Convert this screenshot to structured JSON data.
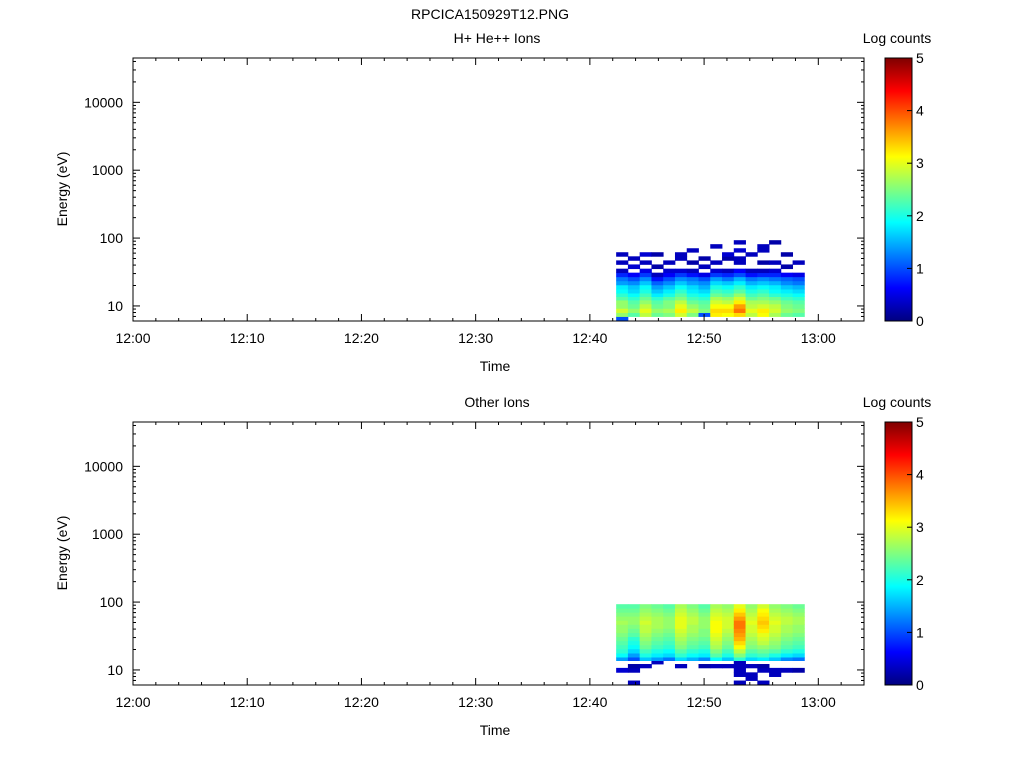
{
  "figure_title": "RPCICA150929T12.PNG",
  "chart_data": [
    {
      "type": "heatmap",
      "title": "H+ He++ Ions",
      "xlabel": "Time",
      "ylabel": "Energy (eV)",
      "colorbar_label": "Log counts",
      "colorbar_ticks": [
        "0",
        "1",
        "2",
        "3",
        "4",
        "5"
      ],
      "colorbar_range": [
        0,
        5
      ],
      "x_ticks": [
        "12:00",
        "12:10",
        "12:20",
        "12:30",
        "12:40",
        "12:50",
        "13:00"
      ],
      "x_range_minutes": [
        0,
        64
      ],
      "y_scale": "log",
      "y_ticks": [
        "10",
        "100",
        "1000",
        "10000"
      ],
      "y_range": [
        6,
        45000
      ],
      "time_start_minutes": 42.3,
      "time_step_minutes": 1.03,
      "energy_bins": [
        6.5,
        7.5,
        8.5,
        10,
        11.5,
        13,
        14.5,
        16.5,
        19,
        22,
        25,
        29,
        33,
        38,
        44,
        50,
        58,
        66,
        76,
        87
      ],
      "values": [
        [
          1.0,
          2.6,
          2.9,
          2.6,
          2.6,
          2.3,
          2.1,
          1.9,
          1.8,
          1.4,
          1.2,
          0.8,
          0.3,
          null,
          0.3,
          null,
          0.3,
          null,
          null,
          null
        ],
        [
          null,
          2.3,
          2.6,
          2.4,
          2.3,
          2.1,
          1.9,
          1.7,
          1.6,
          1.3,
          1.0,
          0.6,
          null,
          0.4,
          null,
          0.3,
          null,
          null,
          null,
          null
        ],
        [
          null,
          2.8,
          3.0,
          2.8,
          2.6,
          2.4,
          2.2,
          2.0,
          1.9,
          1.6,
          1.3,
          0.9,
          0.5,
          null,
          0.3,
          null,
          0.4,
          null,
          null,
          null
        ],
        [
          null,
          2.4,
          2.6,
          2.4,
          2.3,
          2.1,
          1.8,
          1.6,
          1.4,
          1.1,
          0.7,
          0.3,
          null,
          0.2,
          null,
          null,
          0.2,
          null,
          null,
          null
        ],
        [
          null,
          2.5,
          2.7,
          2.5,
          2.5,
          2.3,
          2.0,
          1.8,
          1.6,
          1.3,
          1.0,
          0.6,
          0.4,
          null,
          0.3,
          null,
          null,
          null,
          null,
          null
        ],
        [
          null,
          2.9,
          3.2,
          3.0,
          2.8,
          2.5,
          2.3,
          2.1,
          1.9,
          1.6,
          1.3,
          0.9,
          0.4,
          null,
          null,
          0.3,
          0.3,
          null,
          null,
          null
        ],
        [
          null,
          2.5,
          2.8,
          2.6,
          2.4,
          2.2,
          2.0,
          1.8,
          1.7,
          1.4,
          1.2,
          0.7,
          0.3,
          null,
          0.2,
          null,
          null,
          0.3,
          null,
          null
        ],
        [
          null,
          1.0,
          2.5,
          2.4,
          2.3,
          2.1,
          1.9,
          1.7,
          1.5,
          1.3,
          1.0,
          0.5,
          null,
          0.3,
          null,
          0.2,
          null,
          null,
          null,
          null
        ],
        [
          null,
          3.2,
          3.3,
          3.1,
          2.9,
          2.7,
          2.4,
          2.2,
          2.0,
          1.7,
          1.4,
          0.9,
          0.4,
          null,
          0.3,
          null,
          null,
          null,
          0.3,
          null
        ],
        [
          null,
          3.1,
          3.3,
          3.1,
          2.8,
          2.6,
          2.3,
          2.1,
          1.9,
          1.6,
          1.2,
          0.8,
          0.3,
          null,
          null,
          0.2,
          0.4,
          null,
          null,
          null
        ],
        [
          null,
          3.3,
          3.8,
          3.6,
          3.2,
          2.9,
          2.6,
          2.3,
          2.1,
          1.8,
          1.5,
          1.0,
          0.6,
          null,
          0.3,
          0.3,
          null,
          0.4,
          null,
          0.3
        ],
        [
          null,
          2.8,
          3.0,
          2.8,
          2.7,
          2.4,
          2.2,
          2.0,
          1.8,
          1.5,
          1.2,
          0.7,
          0.3,
          null,
          null,
          null,
          0.3,
          null,
          null,
          null
        ],
        [
          null,
          3.1,
          3.2,
          2.9,
          2.7,
          2.5,
          2.3,
          2.1,
          1.9,
          1.6,
          1.3,
          0.8,
          0.3,
          null,
          0.2,
          null,
          null,
          0.3,
          0.3,
          null
        ],
        [
          null,
          2.7,
          2.9,
          2.8,
          2.6,
          2.4,
          2.1,
          1.9,
          1.8,
          1.5,
          1.2,
          0.8,
          0.4,
          null,
          0.3,
          null,
          null,
          null,
          null,
          0.2
        ],
        [
          null,
          2.4,
          2.6,
          2.5,
          2.4,
          2.2,
          2.0,
          1.8,
          1.6,
          1.3,
          1.1,
          0.6,
          null,
          0.2,
          null,
          null,
          0.2,
          null,
          null,
          null
        ],
        [
          null,
          2.3,
          2.5,
          2.4,
          2.3,
          2.1,
          1.9,
          1.7,
          1.5,
          1.2,
          1.0,
          0.5,
          null,
          null,
          0.3,
          null,
          null,
          null,
          null,
          null
        ]
      ]
    },
    {
      "type": "heatmap",
      "title": "Other Ions",
      "xlabel": "Time",
      "ylabel": "Energy (eV)",
      "colorbar_label": "Log counts",
      "colorbar_ticks": [
        "0",
        "1",
        "2",
        "3",
        "4",
        "5"
      ],
      "colorbar_range": [
        0,
        5
      ],
      "x_ticks": [
        "12:00",
        "12:10",
        "12:20",
        "12:30",
        "12:40",
        "12:50",
        "13:00"
      ],
      "x_range_minutes": [
        0,
        64
      ],
      "y_scale": "log",
      "y_ticks": [
        "10",
        "100",
        "1000",
        "10000"
      ],
      "y_range": [
        6,
        45000
      ],
      "time_start_minutes": 42.3,
      "time_step_minutes": 1.03,
      "energy_bins": [
        6.5,
        7.5,
        8.5,
        10,
        11.5,
        13,
        14.5,
        16.5,
        19,
        22,
        25,
        29,
        33,
        38,
        44,
        50,
        58,
        66,
        76,
        87
      ],
      "values": [
        [
          null,
          null,
          null,
          0.4,
          null,
          null,
          1.4,
          1.9,
          2.1,
          2.2,
          2.3,
          2.4,
          2.5,
          2.6,
          2.6,
          2.7,
          2.6,
          2.5,
          2.4,
          2.3
        ],
        [
          0.3,
          null,
          null,
          0.3,
          0.2,
          null,
          1.0,
          1.4,
          1.7,
          1.9,
          2.0,
          2.1,
          2.3,
          2.4,
          2.5,
          2.6,
          2.6,
          2.5,
          2.4,
          2.3
        ],
        [
          null,
          null,
          null,
          null,
          0.3,
          null,
          1.6,
          2.0,
          2.2,
          2.4,
          2.5,
          2.6,
          2.7,
          2.8,
          2.8,
          2.9,
          2.8,
          2.7,
          2.6,
          2.5
        ],
        [
          null,
          null,
          null,
          null,
          null,
          0.3,
          1.4,
          1.8,
          2.0,
          2.2,
          2.3,
          2.4,
          2.5,
          2.6,
          2.7,
          2.7,
          2.7,
          2.6,
          2.5,
          2.4
        ],
        [
          null,
          null,
          null,
          null,
          null,
          null,
          1.2,
          1.7,
          1.9,
          2.1,
          2.2,
          2.3,
          2.4,
          2.5,
          2.6,
          2.6,
          2.6,
          2.5,
          2.4,
          2.3
        ],
        [
          null,
          null,
          null,
          null,
          0.3,
          null,
          1.7,
          2.1,
          2.3,
          2.5,
          2.6,
          2.7,
          2.8,
          2.9,
          3.0,
          3.0,
          3.0,
          2.9,
          2.8,
          2.7
        ],
        [
          null,
          null,
          null,
          null,
          null,
          null,
          1.5,
          1.9,
          2.1,
          2.3,
          2.4,
          2.5,
          2.6,
          2.7,
          2.7,
          2.8,
          2.8,
          2.7,
          2.6,
          2.5
        ],
        [
          null,
          null,
          null,
          null,
          0.2,
          null,
          1.3,
          1.8,
          2.0,
          2.2,
          2.3,
          2.4,
          2.5,
          2.5,
          2.6,
          2.6,
          2.6,
          2.5,
          2.4,
          2.3
        ],
        [
          null,
          null,
          null,
          null,
          0.3,
          null,
          1.9,
          2.3,
          2.5,
          2.7,
          2.8,
          2.9,
          3.0,
          3.1,
          3.1,
          3.1,
          3.0,
          2.9,
          2.8,
          2.7
        ],
        [
          null,
          null,
          null,
          null,
          0.3,
          null,
          1.6,
          2.0,
          2.2,
          2.4,
          2.5,
          2.6,
          2.7,
          2.8,
          2.9,
          2.9,
          2.9,
          2.8,
          2.7,
          2.6
        ],
        [
          0.3,
          null,
          0.3,
          0.3,
          0.3,
          0.3,
          2.1,
          2.5,
          2.8,
          3.1,
          3.3,
          3.5,
          3.6,
          3.7,
          3.8,
          3.8,
          3.6,
          3.4,
          3.2,
          3.0
        ],
        [
          null,
          0.3,
          0.3,
          null,
          0.3,
          null,
          1.7,
          2.1,
          2.3,
          2.5,
          2.6,
          2.7,
          2.8,
          2.9,
          2.9,
          3.0,
          2.9,
          2.8,
          2.7,
          2.6
        ],
        [
          0.3,
          null,
          null,
          0.3,
          0.2,
          null,
          1.8,
          2.2,
          2.4,
          2.6,
          2.8,
          2.9,
          3.0,
          3.2,
          3.3,
          3.4,
          3.3,
          3.2,
          3.1,
          2.9
        ],
        [
          null,
          null,
          0.3,
          0.3,
          null,
          null,
          1.6,
          2.0,
          2.3,
          2.5,
          2.6,
          2.7,
          2.8,
          2.9,
          2.9,
          3.0,
          2.9,
          2.8,
          2.7,
          2.6
        ],
        [
          null,
          null,
          null,
          0.3,
          null,
          null,
          1.3,
          1.8,
          2.1,
          2.3,
          2.4,
          2.5,
          2.6,
          2.7,
          2.7,
          2.8,
          2.8,
          2.7,
          2.6,
          2.5
        ],
        [
          null,
          null,
          null,
          0.2,
          null,
          null,
          1.2,
          1.7,
          2.0,
          2.2,
          2.3,
          2.4,
          2.5,
          2.6,
          2.6,
          2.7,
          2.7,
          2.6,
          2.5,
          2.4
        ]
      ]
    }
  ]
}
